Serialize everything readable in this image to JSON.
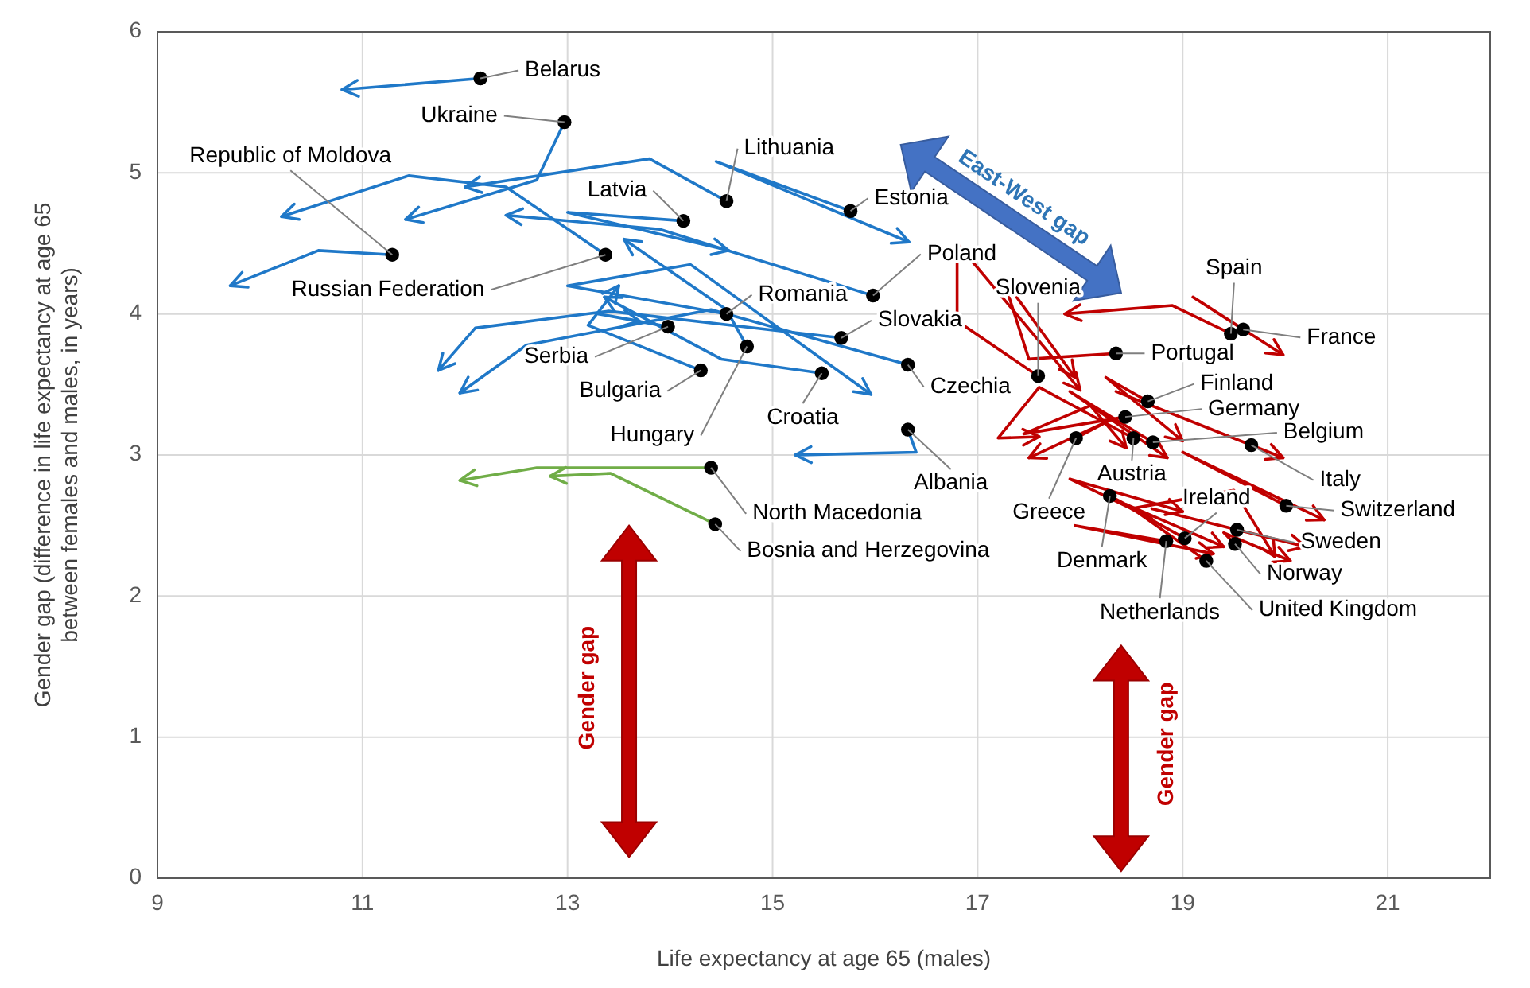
{
  "chart_data": {
    "type": "line",
    "xlabel": "Life expectancy at age 65 (males)",
    "ylabel": "Gender gap (difference in life expectancy at age 65 between females and males, in years)",
    "xlim": [
      9,
      22
    ],
    "ylim": [
      0,
      6
    ],
    "xticks": [
      9,
      11,
      13,
      15,
      17,
      19,
      21
    ],
    "yticks": [
      0,
      1,
      2,
      3,
      4,
      5,
      6
    ],
    "grid": true,
    "annotations": [
      "East-West gap",
      "Gender gap",
      "Gender gap"
    ],
    "series": [
      {
        "name": "Belarus",
        "color": "#1f78c8",
        "x": [
          12.15,
          10.8
        ],
        "values": [
          5.67,
          5.59
        ]
      },
      {
        "name": "Ukraine",
        "color": "#1f78c8",
        "x": [
          12.97,
          12.7,
          11.42
        ],
        "values": [
          5.36,
          4.95,
          4.67
        ]
      },
      {
        "name": "Republic of Moldova",
        "color": "#1f78c8",
        "x": [
          11.29,
          10.57,
          9.71
        ],
        "values": [
          4.42,
          4.45,
          4.2
        ]
      },
      {
        "name": "Russian Federation",
        "color": "#1f78c8",
        "x": [
          13.37,
          12.4,
          11.45,
          10.21
        ],
        "values": [
          4.42,
          4.9,
          4.98,
          4.69
        ]
      },
      {
        "name": "Lithuania",
        "color": "#1f78c8",
        "x": [
          14.55,
          13.8,
          12.0
        ],
        "values": [
          4.8,
          5.1,
          4.9
        ]
      },
      {
        "name": "Estonia",
        "color": "#1f78c8",
        "x": [
          15.76,
          14.45,
          16.33
        ],
        "values": [
          4.73,
          5.08,
          4.51
        ]
      },
      {
        "name": "Latvia",
        "color": "#1f78c8",
        "x": [
          14.13,
          13.0,
          14.57
        ],
        "values": [
          4.66,
          4.72,
          4.45
        ]
      },
      {
        "name": "Poland",
        "color": "#1f78c8",
        "x": [
          15.98,
          13.9,
          12.4
        ],
        "values": [
          4.13,
          4.6,
          4.7
        ]
      },
      {
        "name": "Romania",
        "color": "#1f78c8",
        "x": [
          14.55,
          13.0,
          14.2,
          15.96
        ],
        "values": [
          4.0,
          4.2,
          4.35,
          3.43
        ]
      },
      {
        "name": "Slovakia",
        "color": "#1f78c8",
        "x": [
          15.67,
          13.4,
          12.1,
          11.74
        ],
        "values": [
          3.83,
          4.02,
          3.9,
          3.6
        ]
      },
      {
        "name": "Czechia",
        "color": "#1f78c8",
        "x": [
          16.32,
          14.4,
          12.6,
          11.95
        ],
        "values": [
          3.64,
          4.03,
          3.78,
          3.44
        ]
      },
      {
        "name": "Croatia",
        "color": "#1f78c8",
        "x": [
          15.48,
          14.5,
          13.36
        ],
        "values": [
          3.58,
          3.68,
          4.12
        ]
      },
      {
        "name": "Serbia",
        "color": "#1f78c8",
        "x": [
          13.98,
          13.3,
          13.7
        ],
        "values": [
          3.91,
          4.0,
          3.95
        ]
      },
      {
        "name": "Bulgaria",
        "color": "#1f78c8",
        "x": [
          14.3,
          13.2,
          13.5
        ],
        "values": [
          3.6,
          3.92,
          4.2
        ]
      },
      {
        "name": "Hungary",
        "color": "#1f78c8",
        "x": [
          14.75,
          14.55,
          13.55
        ],
        "values": [
          3.77,
          4.03,
          4.53
        ]
      },
      {
        "name": "Albania",
        "color": "#1f78c8",
        "x": [
          16.32,
          16.4,
          15.22
        ],
        "values": [
          3.18,
          3.02,
          3.0
        ]
      },
      {
        "name": "North Macedonia",
        "color": "#70ad47",
        "x": [
          14.4,
          12.7,
          11.95
        ],
        "values": [
          2.91,
          2.91,
          2.82
        ]
      },
      {
        "name": "Bosnia and Herzegovina",
        "color": "#70ad47",
        "x": [
          14.44,
          13.42,
          12.83
        ],
        "values": [
          2.51,
          2.87,
          2.85
        ]
      },
      {
        "name": "Slovenia",
        "color": "#c00000",
        "x": [
          17.59,
          16.8,
          16.8,
          18.0
        ],
        "values": [
          3.56,
          3.95,
          4.5,
          3.46
        ]
      },
      {
        "name": "Spain",
        "color": "#c00000",
        "x": [
          19.47,
          18.9,
          17.85
        ],
        "values": [
          3.86,
          4.06,
          4.0
        ]
      },
      {
        "name": "France",
        "color": "#c00000",
        "x": [
          19.59,
          19.1,
          19.98
        ],
        "values": [
          3.89,
          4.12,
          3.71
        ]
      },
      {
        "name": "Portugal",
        "color": "#c00000",
        "x": [
          18.35,
          17.5,
          17.25,
          17.95
        ],
        "values": [
          3.72,
          3.68,
          4.25,
          3.55
        ]
      },
      {
        "name": "Finland",
        "color": "#c00000",
        "x": [
          18.66,
          18.25,
          19.0
        ],
        "values": [
          3.38,
          3.55,
          3.1
        ]
      },
      {
        "name": "Germany",
        "color": "#c00000",
        "x": [
          18.44,
          17.45,
          18.1,
          18.45
        ],
        "values": [
          3.27,
          3.15,
          3.35,
          3.05
        ]
      },
      {
        "name": "Belgium",
        "color": "#c00000",
        "x": [
          18.71,
          17.9,
          18.85
        ],
        "values": [
          3.09,
          3.45,
          2.98
        ]
      },
      {
        "name": "Italy",
        "color": "#c00000",
        "x": [
          19.67,
          18.35,
          19.98
        ],
        "values": [
          3.07,
          3.45,
          2.98
        ]
      },
      {
        "name": "Switzerland",
        "color": "#c00000",
        "x": [
          20.01,
          19.0,
          20.38
        ],
        "values": [
          2.64,
          3.02,
          2.54
        ]
      },
      {
        "name": "Austria",
        "color": "#c00000",
        "x": [
          18.52,
          17.6,
          17.2,
          17.6
        ],
        "values": [
          3.12,
          3.48,
          3.12,
          3.13
        ]
      },
      {
        "name": "Greece",
        "color": "#c00000",
        "x": [
          17.96,
          18.3,
          17.5
        ],
        "values": [
          3.12,
          3.25,
          2.98
        ]
      },
      {
        "name": "Denmark",
        "color": "#c00000",
        "x": [
          18.29,
          18.7,
          17.9,
          19.0
        ],
        "values": [
          2.71,
          2.55,
          2.83,
          2.6
        ]
      },
      {
        "name": "Netherlands",
        "color": "#c00000",
        "x": [
          18.84,
          17.95,
          19.3
        ],
        "values": [
          2.39,
          2.5,
          2.3
        ]
      },
      {
        "name": "Ireland",
        "color": "#c00000",
        "x": [
          19.02,
          18.5,
          19.5,
          19.9
        ],
        "values": [
          2.41,
          2.62,
          2.75,
          2.28
        ]
      },
      {
        "name": "Sweden",
        "color": "#c00000",
        "x": [
          19.53,
          18.7,
          20.2
        ],
        "values": [
          2.47,
          2.62,
          2.35
        ]
      },
      {
        "name": "Norway",
        "color": "#c00000",
        "x": [
          19.51,
          19.4,
          20.05
        ],
        "values": [
          2.37,
          2.45,
          2.25
        ]
      },
      {
        "name": "United Kingdom",
        "color": "#c00000",
        "x": [
          19.23,
          18.45,
          19.4
        ],
        "values": [
          2.25,
          2.65,
          2.35
        ]
      },
      {
        "type": "scatter",
        "marker": "circle",
        "color": "#000000",
        "x": [
          12.15,
          12.97,
          11.29,
          13.37,
          14.55,
          15.76,
          14.13,
          15.98,
          14.55,
          15.67,
          16.32,
          15.48,
          13.98,
          14.3,
          14.75,
          16.32,
          14.4,
          14.44,
          17.59,
          19.47,
          19.59,
          18.35,
          18.66,
          18.44,
          18.71,
          19.67,
          20.01,
          18.52,
          17.96,
          18.29,
          18.84,
          19.02,
          19.53,
          19.51,
          19.23
        ],
        "values": [
          5.67,
          5.36,
          4.42,
          4.42,
          4.8,
          4.73,
          4.66,
          4.13,
          4.0,
          3.83,
          3.64,
          3.58,
          3.91,
          3.6,
          3.77,
          3.18,
          2.91,
          2.51,
          3.56,
          3.86,
          3.89,
          3.72,
          3.38,
          3.27,
          3.09,
          3.07,
          2.64,
          3.12,
          3.12,
          2.71,
          2.39,
          2.41,
          2.47,
          2.37,
          2.25
        ]
      }
    ]
  }
}
